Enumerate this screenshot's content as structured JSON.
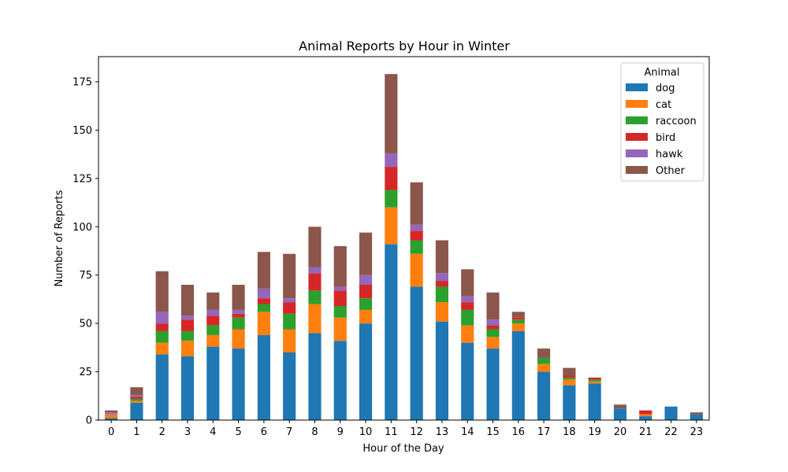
{
  "chart_data": {
    "type": "bar",
    "stacked": true,
    "title": "Animal Reports by Hour in Winter",
    "xlabel": "Hour of the Day",
    "ylabel": "Number of Reports",
    "ylim": [
      0,
      188
    ],
    "yticks": [
      0,
      25,
      50,
      75,
      100,
      125,
      150,
      175
    ],
    "grid": false,
    "legend": {
      "title": "Animal",
      "placement": "top-right"
    },
    "categories": [
      "0",
      "1",
      "2",
      "3",
      "4",
      "5",
      "6",
      "7",
      "8",
      "9",
      "10",
      "11",
      "12",
      "13",
      "14",
      "15",
      "16",
      "17",
      "18",
      "19",
      "20",
      "21",
      "22",
      "23"
    ],
    "series": [
      {
        "name": "dog",
        "color": "#1f77b4",
        "values": [
          1,
          9,
          34,
          33,
          38,
          37,
          44,
          35,
          45,
          41,
          50,
          91,
          69,
          51,
          40,
          37,
          46,
          25,
          18,
          19,
          6,
          2,
          7,
          3
        ]
      },
      {
        "name": "cat",
        "color": "#ff7f0e",
        "values": [
          2,
          1,
          6,
          8,
          6,
          10,
          12,
          12,
          15,
          12,
          7,
          19,
          17,
          10,
          9,
          6,
          4,
          4,
          3,
          1,
          0,
          1,
          0,
          0
        ]
      },
      {
        "name": "raccoon",
        "color": "#2ca02c",
        "values": [
          0,
          1,
          6,
          5,
          5,
          6,
          4,
          8,
          7,
          6,
          6,
          9,
          7,
          8,
          8,
          4,
          2,
          3,
          1,
          1,
          0,
          0,
          0,
          0
        ]
      },
      {
        "name": "bird",
        "color": "#d62728",
        "values": [
          0,
          1,
          4,
          6,
          5,
          2,
          3,
          6,
          9,
          8,
          7,
          12,
          5,
          3,
          4,
          2,
          1,
          0,
          1,
          1,
          0,
          2,
          0,
          0
        ]
      },
      {
        "name": "hawk",
        "color": "#9467bd",
        "values": [
          1,
          1,
          6,
          2,
          3,
          2,
          5,
          2,
          3,
          2,
          5,
          7,
          3,
          4,
          3,
          3,
          0,
          0,
          0,
          0,
          0,
          0,
          0,
          0
        ]
      },
      {
        "name": "Other",
        "color": "#8c564b",
        "values": [
          1,
          4,
          21,
          16,
          9,
          13,
          19,
          23,
          21,
          21,
          22,
          41,
          22,
          17,
          14,
          14,
          3,
          5,
          4,
          0,
          2,
          0,
          0,
          1
        ]
      }
    ]
  }
}
